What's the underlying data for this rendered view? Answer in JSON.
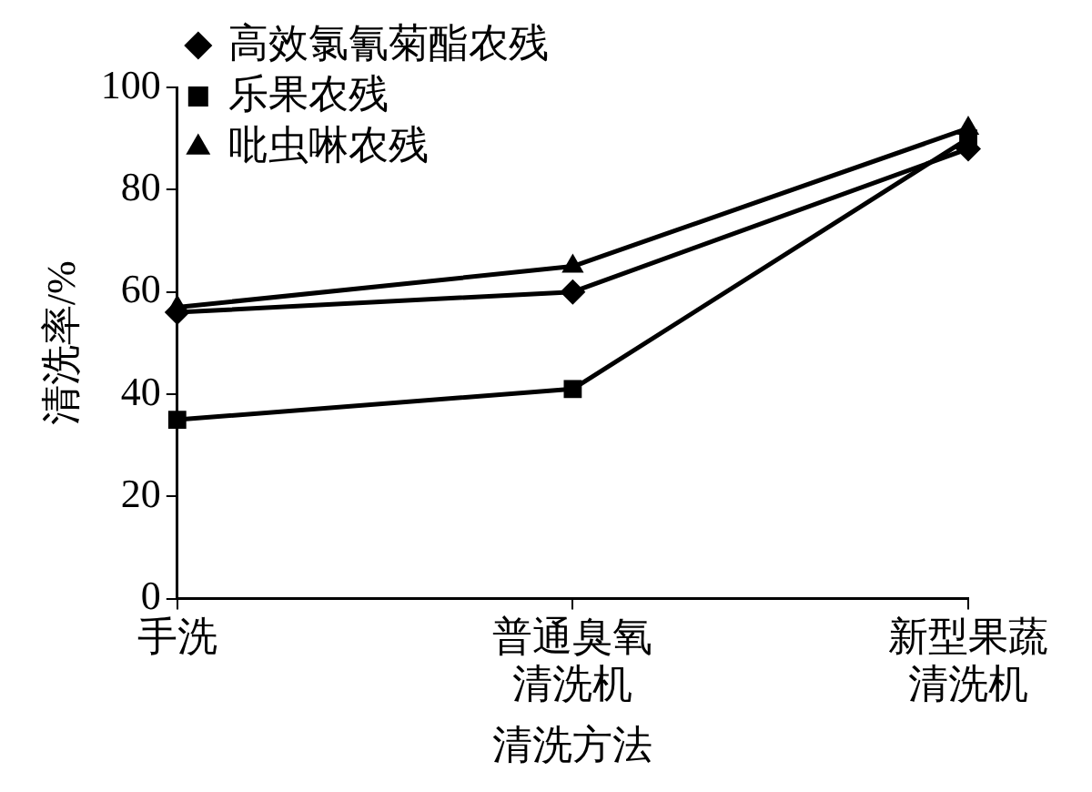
{
  "chart_data": {
    "type": "line",
    "xlabel": "清洗方法",
    "ylabel": "清洗率/%",
    "categories": [
      "手洗",
      "普通臭氧清洗机",
      "新型果蔬清洗机"
    ],
    "series": [
      {
        "name": "高效氯氰菊酯农残",
        "color": "#000000",
        "marker": "diamond",
        "values": [
          56,
          60,
          88
        ]
      },
      {
        "name": "乐果农残",
        "color": "#000000",
        "marker": "square",
        "values": [
          35,
          41,
          90
        ]
      },
      {
        "name": "吡虫啉农残",
        "color": "#000000",
        "marker": "triangle",
        "values": [
          57,
          65,
          92
        ]
      }
    ],
    "ylim": [
      0,
      100
    ],
    "yticks": [
      0,
      20,
      40,
      60,
      80,
      100
    ],
    "grid": false,
    "legend": "top left",
    "line_style": "solid"
  }
}
